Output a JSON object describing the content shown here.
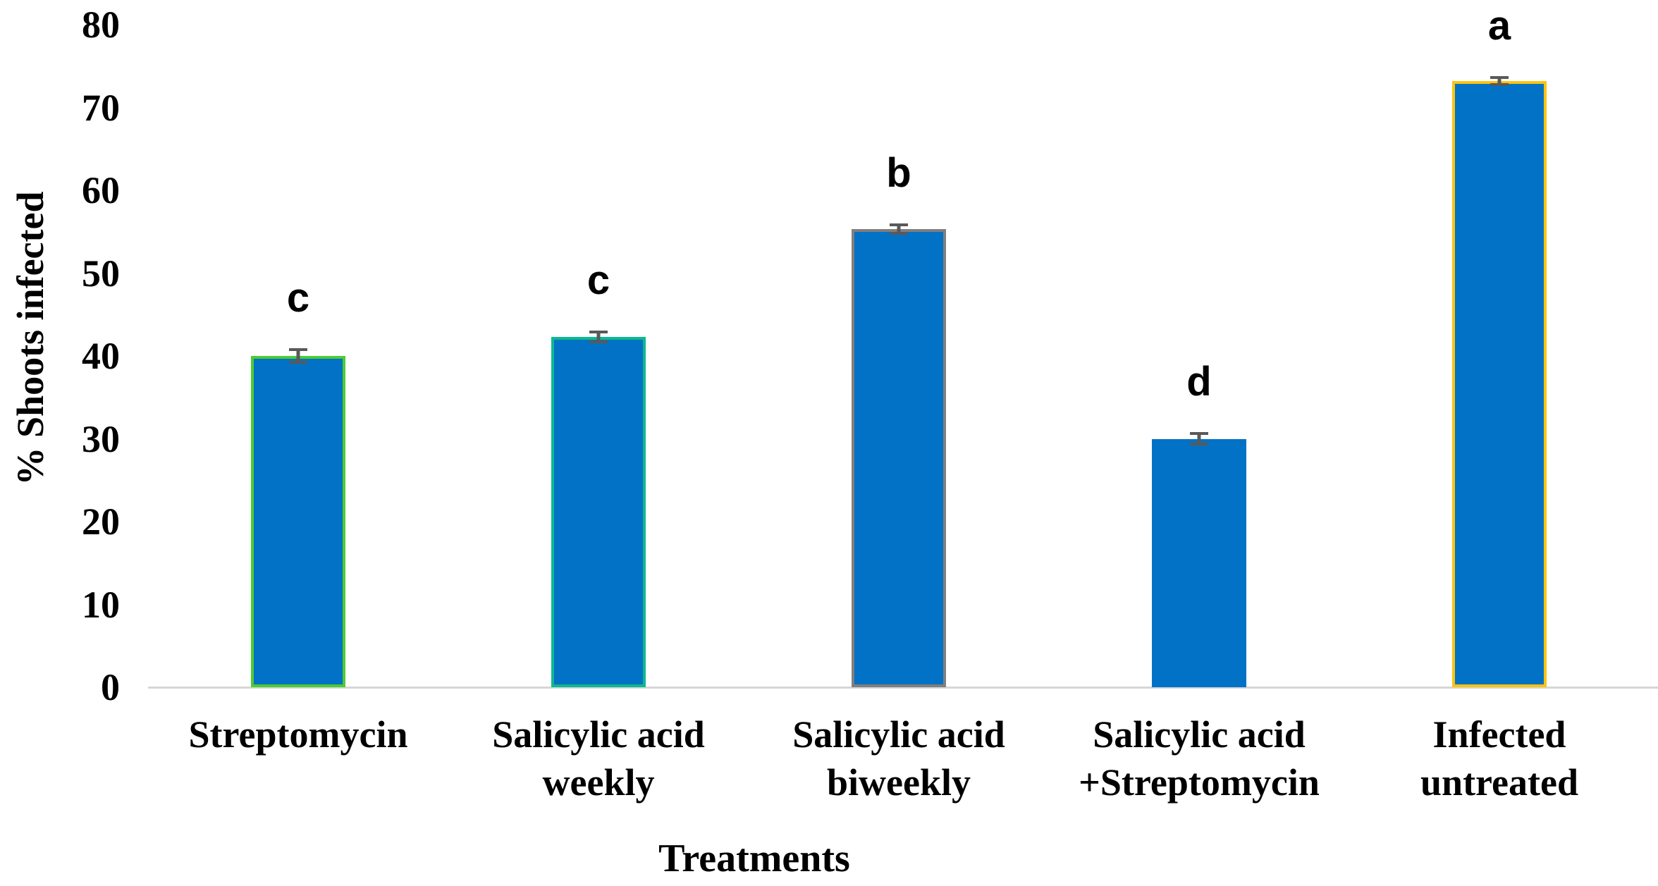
{
  "chart_data": {
    "type": "bar",
    "title": "",
    "xlabel": "Treatments",
    "ylabel": "% Shoots infected",
    "ylim": [
      0,
      80
    ],
    "yticks": [
      0,
      10,
      20,
      30,
      40,
      50,
      60,
      70,
      80
    ],
    "grid": false,
    "legend": false,
    "categories": [
      "Streptomycin",
      "Salicylic acid weekly",
      "Salicylic acid biweekly",
      "Salicylic acid +Streptomycin",
      "Infected untreated"
    ],
    "category_lines": [
      [
        "Streptomycin"
      ],
      [
        "Salicylic acid",
        "weekly"
      ],
      [
        "Salicylic acid",
        "biweekly"
      ],
      [
        "Salicylic acid",
        "+Streptomycin"
      ],
      [
        "Infected",
        "untreated"
      ]
    ],
    "series": [
      {
        "name": "% Shoots infected",
        "values": [
          40.0,
          42.3,
          55.3,
          30.0,
          73.2
        ],
        "error_plus": [
          0.9,
          0.8,
          0.7,
          0.8,
          0.6
        ],
        "error_minus": [
          0.9,
          0.8,
          0.7,
          0.8,
          0.6
        ],
        "sig_letters": [
          "c",
          "c",
          "b",
          "d",
          "a"
        ]
      }
    ],
    "colors": {
      "bar_fill": "#0272C6",
      "bar_outlines": [
        "#4ECB31",
        "#0EB890",
        "#7F7F7F",
        null,
        "#FDC410"
      ],
      "error_bar": "#595959",
      "axis_line": "#D6D6D6",
      "text": "#000000"
    }
  }
}
